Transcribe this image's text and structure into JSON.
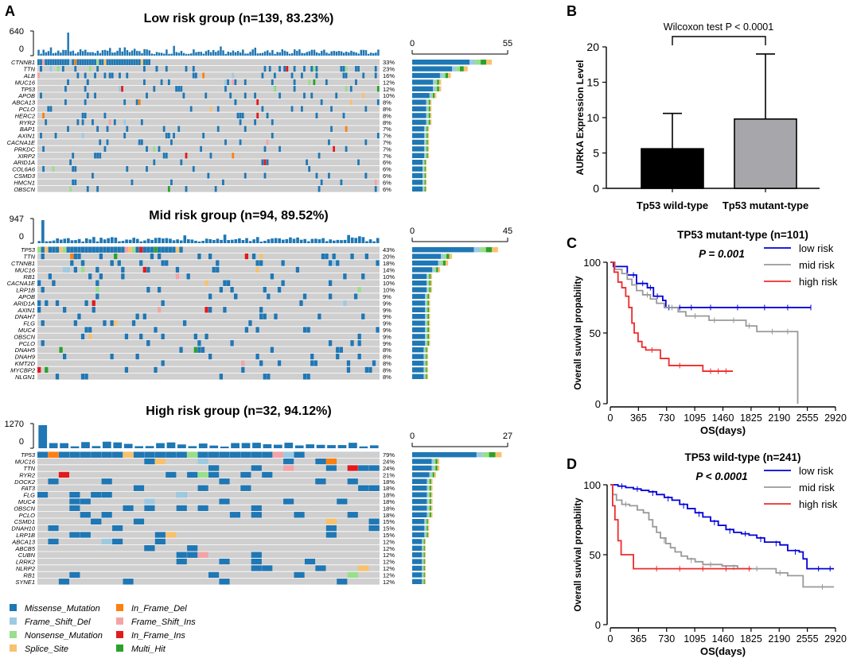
{
  "panel_a": {
    "letter": "A",
    "legend": [
      {
        "label": "Missense_Mutation",
        "color": "#1f77b4"
      },
      {
        "label": "In_Frame_Del",
        "color": "#ff7f0e"
      },
      {
        "label": "Frame_Shift_Del",
        "color": "#9ecae1"
      },
      {
        "label": "Frame_Shift_Ins",
        "color": "#f4a3a8"
      },
      {
        "label": "Nonsense_Mutation",
        "color": "#98df8a"
      },
      {
        "label": "In_Frame_Ins",
        "color": "#e31a1c"
      },
      {
        "label": "Splice_Site",
        "color": "#f7c16e"
      },
      {
        "label": "Multi_Hit",
        "color": "#2ca02c"
      }
    ],
    "groups": [
      {
        "title": "Low risk group (n=139, 83.23%)",
        "tmb_max": "640",
        "tmb_min": "0",
        "bar_min": "0",
        "bar_max": "55",
        "samples": 139,
        "genes": [
          {
            "name": "CTNNB1",
            "pct": "33%"
          },
          {
            "name": "TTN",
            "pct": "23%"
          },
          {
            "name": "ALB",
            "pct": "16%"
          },
          {
            "name": "MUC16",
            "pct": "12%"
          },
          {
            "name": "TP53",
            "pct": "12%"
          },
          {
            "name": "APOB",
            "pct": "10%"
          },
          {
            "name": "ABCA13",
            "pct": "8%"
          },
          {
            "name": "PCLO",
            "pct": "8%"
          },
          {
            "name": "HERC2",
            "pct": "8%"
          },
          {
            "name": "RYR2",
            "pct": "8%"
          },
          {
            "name": "BAP1",
            "pct": "7%"
          },
          {
            "name": "AXIN1",
            "pct": "7%"
          },
          {
            "name": "CACNA1E",
            "pct": "7%"
          },
          {
            "name": "PRKDC",
            "pct": "7%"
          },
          {
            "name": "XIRP2",
            "pct": "7%"
          },
          {
            "name": "ARID1A",
            "pct": "6%"
          },
          {
            "name": "COL6A6",
            "pct": "6%"
          },
          {
            "name": "CSMD3",
            "pct": "6%"
          },
          {
            "name": "HMCN1",
            "pct": "6%"
          },
          {
            "name": "OBSCN",
            "pct": "6%"
          }
        ]
      },
      {
        "title": "Mid risk group (n=94, 89.52%)",
        "tmb_max": "947",
        "tmb_min": "0",
        "bar_min": "0",
        "bar_max": "45",
        "samples": 94,
        "genes": [
          {
            "name": "TP53",
            "pct": "43%"
          },
          {
            "name": "TTN",
            "pct": "20%"
          },
          {
            "name": "CTNNB1",
            "pct": "18%"
          },
          {
            "name": "MUC16",
            "pct": "14%"
          },
          {
            "name": "RB1",
            "pct": "10%"
          },
          {
            "name": "CACNA1E",
            "pct": "10%"
          },
          {
            "name": "LRP1B",
            "pct": "10%"
          },
          {
            "name": "APOB",
            "pct": "9%"
          },
          {
            "name": "ARID1A",
            "pct": "9%"
          },
          {
            "name": "AXIN1",
            "pct": "9%"
          },
          {
            "name": "DNAH7",
            "pct": "9%"
          },
          {
            "name": "FLG",
            "pct": "9%"
          },
          {
            "name": "MUC4",
            "pct": "9%"
          },
          {
            "name": "OBSCN",
            "pct": "9%"
          },
          {
            "name": "PCLO",
            "pct": "9%"
          },
          {
            "name": "DNAH5",
            "pct": "8%"
          },
          {
            "name": "DNAH9",
            "pct": "8%"
          },
          {
            "name": "KMT2D",
            "pct": "8%"
          },
          {
            "name": "MYCBP2",
            "pct": "8%"
          },
          {
            "name": "NLGN1",
            "pct": "8%"
          }
        ]
      },
      {
        "title": "High risk group (n=32, 94.12%)",
        "tmb_max": "1270",
        "tmb_min": "0",
        "bar_min": "0",
        "bar_max": "27",
        "samples": 32,
        "genes": [
          {
            "name": "TP53",
            "pct": "79%"
          },
          {
            "name": "MUC16",
            "pct": "24%"
          },
          {
            "name": "TTN",
            "pct": "24%"
          },
          {
            "name": "RYR2",
            "pct": "21%"
          },
          {
            "name": "DOCK2",
            "pct": "18%"
          },
          {
            "name": "FAT3",
            "pct": "18%"
          },
          {
            "name": "FLG",
            "pct": "18%"
          },
          {
            "name": "MUC4",
            "pct": "18%"
          },
          {
            "name": "OBSCN",
            "pct": "18%"
          },
          {
            "name": "PCLO",
            "pct": "18%"
          },
          {
            "name": "CSMD1",
            "pct": "15%"
          },
          {
            "name": "DNAH10",
            "pct": "15%"
          },
          {
            "name": "LRP1B",
            "pct": "15%"
          },
          {
            "name": "ABCA13",
            "pct": "12%"
          },
          {
            "name": "ABCB5",
            "pct": "12%"
          },
          {
            "name": "CUBN",
            "pct": "12%"
          },
          {
            "name": "LRRK2",
            "pct": "12%"
          },
          {
            "name": "NLRP2",
            "pct": "12%"
          },
          {
            "name": "RB1",
            "pct": "12%"
          },
          {
            "name": "SYNE1",
            "pct": "12%"
          }
        ]
      }
    ]
  },
  "panel_b": {
    "letter": "B",
    "chart_data": {
      "type": "bar",
      "test_label": "Wilcoxon test P < 0.0001",
      "categories": [
        "Tp53 wild-type",
        "Tp53 mutant-type"
      ],
      "values": [
        5.6,
        9.8
      ],
      "error_upper": [
        10.6,
        19.0
      ],
      "colors": [
        "#000000",
        "#a7a7ab"
      ],
      "ylabel": "AURKA Expression Level",
      "ylim": [
        0,
        20
      ],
      "yticks": [
        "0",
        "5",
        "10",
        "15",
        "20"
      ]
    }
  },
  "panel_c": {
    "letter": "C",
    "chart_data": {
      "type": "line",
      "title": "TP53 mutant-type (n=101)",
      "pvalue": "P = 0.001",
      "xlabel": "OS(days)",
      "ylabel": "Overall suvival propability",
      "xlim": [
        0,
        2920
      ],
      "ylim": [
        0,
        100
      ],
      "xticks": [
        "0",
        "365",
        "730",
        "1095",
        "1460",
        "1825",
        "2190",
        "2555",
        "2920"
      ],
      "yticks": [
        "0",
        "50",
        "100"
      ],
      "series": [
        {
          "name": "low risk",
          "color": "#0000d6",
          "points": [
            [
              0,
              100
            ],
            [
              40,
              97
            ],
            [
              200,
              97
            ],
            [
              220,
              91
            ],
            [
              320,
              91
            ],
            [
              340,
              85
            ],
            [
              460,
              85
            ],
            [
              480,
              82
            ],
            [
              520,
              82
            ],
            [
              560,
              76
            ],
            [
              640,
              76
            ],
            [
              680,
              73
            ],
            [
              720,
              68
            ],
            [
              2600,
              68
            ]
          ],
          "censors": [
            [
              300,
              91
            ],
            [
              420,
              85
            ],
            [
              520,
              82
            ],
            [
              610,
              76
            ],
            [
              760,
              68
            ],
            [
              900,
              68
            ],
            [
              1050,
              68
            ],
            [
              1300,
              68
            ],
            [
              1650,
              68
            ],
            [
              2000,
              68
            ],
            [
              2300,
              68
            ],
            [
              2600,
              68
            ]
          ]
        },
        {
          "name": "mid risk",
          "color": "#999999",
          "points": [
            [
              0,
              100
            ],
            [
              60,
              95
            ],
            [
              150,
              92
            ],
            [
              220,
              88
            ],
            [
              280,
              84
            ],
            [
              340,
              80
            ],
            [
              420,
              77
            ],
            [
              520,
              74
            ],
            [
              600,
              71
            ],
            [
              700,
              68
            ],
            [
              880,
              65
            ],
            [
              980,
              62
            ],
            [
              1280,
              59
            ],
            [
              1760,
              55
            ],
            [
              1900,
              51
            ],
            [
              2430,
              51
            ],
            [
              2430,
              0
            ]
          ],
          "censors": [
            [
              480,
              77
            ],
            [
              800,
              68
            ],
            [
              1100,
              62
            ],
            [
              1350,
              59
            ],
            [
              1600,
              59
            ],
            [
              1800,
              55
            ],
            [
              2100,
              51
            ],
            [
              2300,
              51
            ]
          ]
        },
        {
          "name": "high risk",
          "color": "#ee2b2b",
          "points": [
            [
              0,
              100
            ],
            [
              50,
              93
            ],
            [
              100,
              86
            ],
            [
              150,
              82
            ],
            [
              200,
              76
            ],
            [
              240,
              68
            ],
            [
              280,
              57
            ],
            [
              310,
              50
            ],
            [
              360,
              44
            ],
            [
              410,
              40
            ],
            [
              460,
              38
            ],
            [
              620,
              38
            ],
            [
              650,
              32
            ],
            [
              730,
              32
            ],
            [
              760,
              27
            ],
            [
              1180,
              27
            ],
            [
              1200,
              23
            ],
            [
              1590,
              23
            ]
          ],
          "censors": [
            [
              540,
              38
            ],
            [
              900,
              27
            ],
            [
              1300,
              23
            ],
            [
              1400,
              23
            ],
            [
              1500,
              23
            ]
          ]
        }
      ]
    }
  },
  "panel_d": {
    "letter": "D",
    "chart_data": {
      "type": "line",
      "title": "TP53 wild-type (n=241)",
      "pvalue": "P < 0.0001",
      "xlabel": "OS(days)",
      "ylabel": "Overall suvival propability",
      "xlim": [
        0,
        2920
      ],
      "ylim": [
        0,
        100
      ],
      "xticks": [
        "0",
        "365",
        "730",
        "1095",
        "1460",
        "1825",
        "2190",
        "2555",
        "2920"
      ],
      "yticks": [
        "0",
        "50",
        "100"
      ],
      "series": [
        {
          "name": "low risk",
          "color": "#0000d6",
          "points": [
            [
              0,
              100
            ],
            [
              100,
              99
            ],
            [
              200,
              98
            ],
            [
              300,
              97
            ],
            [
              400,
              96
            ],
            [
              500,
              95
            ],
            [
              600,
              93
            ],
            [
              700,
              91
            ],
            [
              800,
              89
            ],
            [
              900,
              86
            ],
            [
              1000,
              83
            ],
            [
              1100,
              80
            ],
            [
              1200,
              77
            ],
            [
              1300,
              74
            ],
            [
              1400,
              71
            ],
            [
              1500,
              68
            ],
            [
              1600,
              66
            ],
            [
              1700,
              65
            ],
            [
              1800,
              64
            ],
            [
              1900,
              62
            ],
            [
              2000,
              59
            ],
            [
              2200,
              57
            ],
            [
              2300,
              53
            ],
            [
              2450,
              52
            ],
            [
              2500,
              47
            ],
            [
              2550,
              40
            ],
            [
              2900,
              40
            ]
          ],
          "censors": [
            [
              150,
              99
            ],
            [
              350,
              97
            ],
            [
              550,
              94
            ],
            [
              750,
              90
            ],
            [
              950,
              85
            ],
            [
              1150,
              79
            ],
            [
              1350,
              73
            ],
            [
              1550,
              67
            ],
            [
              1750,
              65
            ],
            [
              1950,
              61
            ],
            [
              2150,
              58
            ],
            [
              2400,
              52
            ],
            [
              2700,
              40
            ],
            [
              2850,
              40
            ]
          ]
        },
        {
          "name": "mid risk",
          "color": "#999999",
          "points": [
            [
              0,
              100
            ],
            [
              30,
              93
            ],
            [
              80,
              89
            ],
            [
              150,
              86
            ],
            [
              250,
              85
            ],
            [
              350,
              82
            ],
            [
              430,
              80
            ],
            [
              500,
              75
            ],
            [
              550,
              70
            ],
            [
              600,
              66
            ],
            [
              650,
              62
            ],
            [
              720,
              58
            ],
            [
              780,
              55
            ],
            [
              840,
              52
            ],
            [
              920,
              49
            ],
            [
              1000,
              47
            ],
            [
              1100,
              45
            ],
            [
              1200,
              43
            ],
            [
              1450,
              42
            ],
            [
              1650,
              40
            ],
            [
              2150,
              37
            ],
            [
              2300,
              35
            ],
            [
              2450,
              35
            ],
            [
              2500,
              27
            ],
            [
              2900,
              27
            ]
          ],
          "censors": [
            [
              200,
              86
            ],
            [
              700,
              60
            ],
            [
              1050,
              46
            ],
            [
              1300,
              43
            ],
            [
              1600,
              41
            ],
            [
              1900,
              40
            ],
            [
              2200,
              37
            ],
            [
              2750,
              27
            ]
          ]
        },
        {
          "name": "high risk",
          "color": "#ee2b2b",
          "points": [
            [
              0,
              100
            ],
            [
              30,
              85
            ],
            [
              60,
              75
            ],
            [
              100,
              60
            ],
            [
              140,
              50
            ],
            [
              280,
              50
            ],
            [
              300,
              40
            ],
            [
              1830,
              40
            ]
          ],
          "censors": [
            [
              600,
              40
            ],
            [
              900,
              40
            ],
            [
              1200,
              40
            ],
            [
              1500,
              40
            ],
            [
              1800,
              40
            ]
          ]
        }
      ]
    }
  }
}
